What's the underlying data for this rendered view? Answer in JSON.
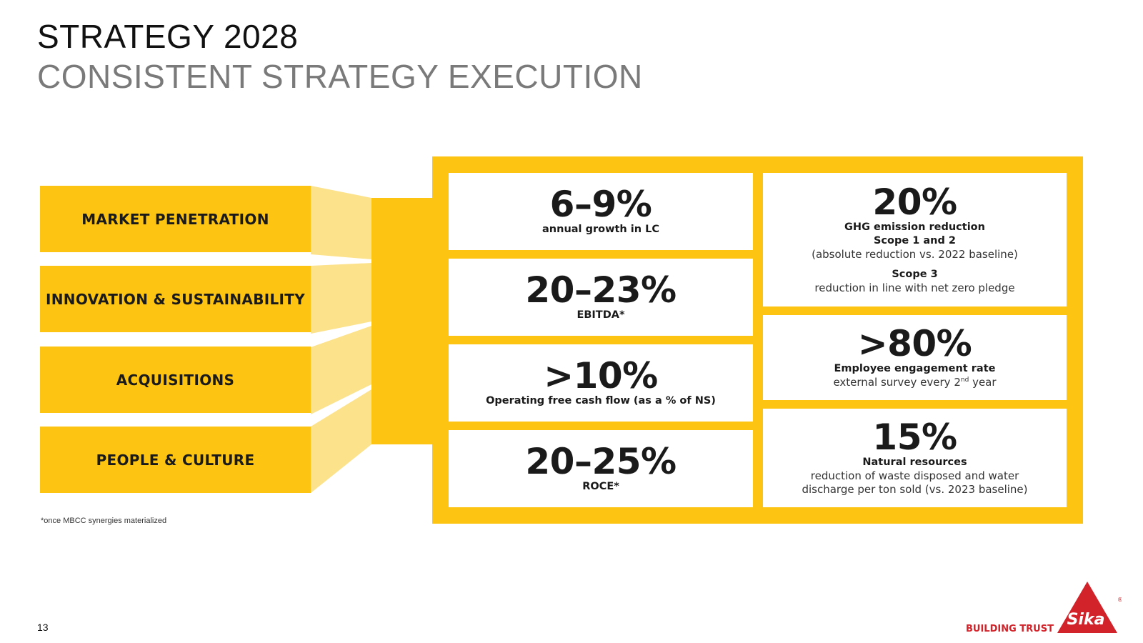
{
  "header": {
    "title": "STRATEGY 2028",
    "subtitle": "CONSISTENT STRATEGY EXECUTION"
  },
  "pillars": [
    {
      "label": "MARKET PENETRATION"
    },
    {
      "label": "INNOVATION & SUSTAINABILITY"
    },
    {
      "label": "ACQUISITIONS"
    },
    {
      "label": "PEOPLE & CULTURE"
    }
  ],
  "financial_targets": [
    {
      "value": "6–9%",
      "label": "annual growth in LC"
    },
    {
      "value": "20–23%",
      "label": "EBITDA*"
    },
    {
      "value": ">10%",
      "label": "Operating free cash flow (as a % of NS)"
    },
    {
      "value": "20–25%",
      "label": "ROCE*"
    }
  ],
  "sustainability_targets": {
    "ghg": {
      "value": "20%",
      "label": "GHG emission reduction",
      "scope12_label": "Scope 1 and 2",
      "scope12_note": "(absolute reduction vs. 2022 baseline)",
      "scope3_label": "Scope 3",
      "scope3_note": "reduction in line with net zero pledge"
    },
    "engagement": {
      "value": ">80%",
      "label": "Employee engagement rate",
      "note_pre": "external survey every 2",
      "note_sup": "nd",
      "note_post": " year"
    },
    "resources": {
      "value": "15%",
      "label": "Natural resources",
      "note_line1": "reduction of waste disposed and water",
      "note_line2": "discharge per ton sold (vs. 2023 baseline)"
    }
  },
  "footnote": "*once MBCC synergies materialized",
  "page_number": "13",
  "footer": {
    "tagline": "BUILDING TRUST",
    "logo_text": "Sika",
    "brand_red": "#d2232a",
    "brand_yellow": "#fdc512"
  }
}
